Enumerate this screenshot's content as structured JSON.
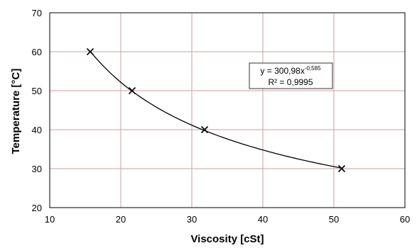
{
  "chart_data": {
    "type": "scatter",
    "xlabel": "Viscosity [cSt]",
    "ylabel": "Temperature [°C]",
    "xlim": [
      10,
      60
    ],
    "ylim": [
      20,
      70
    ],
    "xticks": [
      10,
      20,
      30,
      40,
      50,
      60
    ],
    "yticks": [
      20,
      30,
      40,
      50,
      60,
      70
    ],
    "grid": true,
    "colors": {
      "grid": "#c8a0a0",
      "frame": "#000000",
      "curve": "#000000"
    },
    "series": [
      {
        "marker": "x",
        "points": [
          {
            "x": 15.7,
            "y": 60
          },
          {
            "x": 21.6,
            "y": 50
          },
          {
            "x": 31.8,
            "y": 40
          },
          {
            "x": 51.1,
            "y": 30
          }
        ]
      }
    ],
    "trendline": {
      "type": "power",
      "a": 300.98,
      "b": -0.585,
      "x_range": [
        15.7,
        51.1
      ]
    },
    "annotation": {
      "equation_prefix": "y = 300,98x",
      "equation_exponent": "-0,585",
      "r2": "R² = 0,9995"
    }
  }
}
